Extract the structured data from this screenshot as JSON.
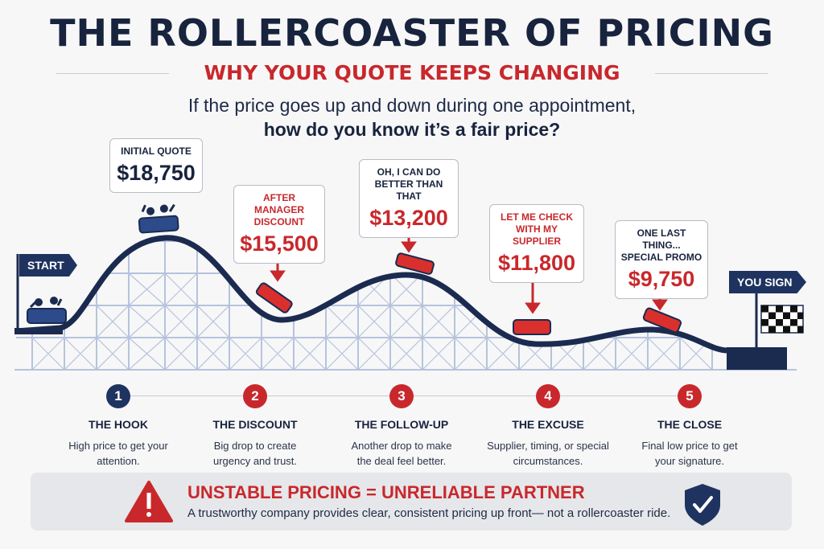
{
  "header": {
    "title": "THE ROLLERCOASTER OF PRICING",
    "subtitle": "WHY YOUR QUOTE KEEPS CHANGING",
    "question_line1": "If the price goes up and down during one appointment,",
    "question_line2": "how do you know it’s a fair price?"
  },
  "flags": {
    "start": "START",
    "end": "YOU SIGN"
  },
  "quotes": [
    {
      "caption": "INITIAL QUOTE",
      "price": "$18,750",
      "caption_color": "navy",
      "price_color": "navy"
    },
    {
      "caption": "AFTER MANAGER DISCOUNT",
      "price": "$15,500",
      "caption_color": "red",
      "price_color": "red"
    },
    {
      "caption": "OH, I CAN DO BETTER THAN THAT",
      "price": "$13,200",
      "caption_color": "navy",
      "price_color": "red"
    },
    {
      "caption": "LET ME CHECK WITH MY SUPPLIER",
      "price": "$11,800",
      "caption_color": "red",
      "price_color": "red"
    },
    {
      "caption": "ONE LAST THING... SPECIAL PROMO",
      "price": "$9,750",
      "caption_color": "navy",
      "price_color": "red"
    }
  ],
  "steps": [
    {
      "number": "1",
      "title": "THE HOOK",
      "desc": "High price to get your attention.",
      "color": "#1f3360"
    },
    {
      "number": "2",
      "title": "THE DISCOUNT",
      "desc": "Big drop to create urgency and trust.",
      "color": "#c8282c"
    },
    {
      "number": "3",
      "title": "THE FOLLOW-UP",
      "desc": "Another drop to make the deal feel better.",
      "color": "#c8282c"
    },
    {
      "number": "4",
      "title": "THE EXCUSE",
      "desc": "Supplier, timing, or special circumstances.",
      "color": "#c8282c"
    },
    {
      "number": "5",
      "title": "THE CLOSE",
      "desc": "Final low price to get your signature.",
      "color": "#c8282c"
    }
  ],
  "banner": {
    "title": "UNSTABLE PRICING = UNRELIABLE PARTNER",
    "text": "A trustworthy company provides clear, consistent pricing up front— not a rollercoaster ride."
  },
  "colors": {
    "navy": "#1f3360",
    "red": "#c8282c",
    "track": "#1b2a4f",
    "support": "#b6c3dc"
  },
  "icons": {
    "warning": "warning-triangle-icon",
    "shield": "shield-check-icon",
    "finish": "checkered-flag-icon"
  }
}
